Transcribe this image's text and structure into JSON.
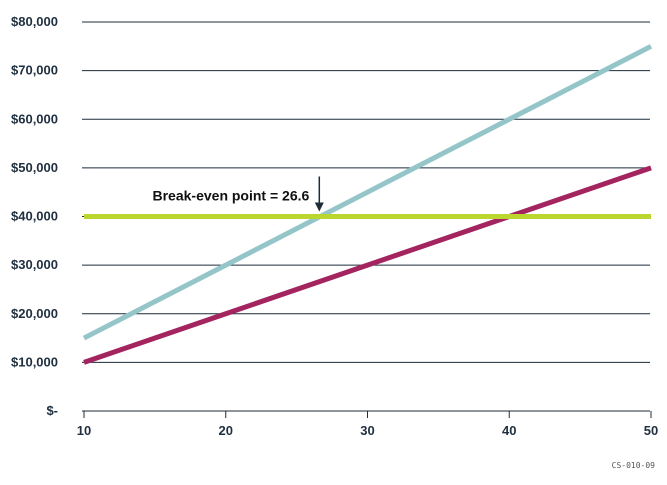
{
  "chart_data": {
    "type": "line",
    "title": "",
    "xlabel": "",
    "ylabel": "",
    "x": [
      10,
      20,
      30,
      40,
      50
    ],
    "x_tick_labels": [
      "10",
      "20",
      "30",
      "40",
      "50"
    ],
    "xlim": [
      10,
      50
    ],
    "y_ticks": [
      0,
      10000,
      20000,
      30000,
      40000,
      50000,
      60000,
      70000,
      80000
    ],
    "y_tick_labels": [
      "$-",
      "$10,000",
      "$20,000",
      "$30,000",
      "$40,000",
      "$50,000",
      "$60,000",
      "$70,000",
      "$80,000"
    ],
    "ylim": [
      0,
      80000
    ],
    "grid": "horizontal",
    "legend": "none",
    "series": [
      {
        "color": "#94c5c8",
        "values": [
          15000,
          30000,
          45000,
          60000,
          75000
        ]
      },
      {
        "color": "#a3245e",
        "values": [
          10000,
          20000,
          30000,
          40000,
          50000
        ]
      },
      {
        "color": "#bcd630",
        "values": [
          40000,
          40000,
          40000,
          40000,
          40000
        ]
      }
    ],
    "annotations": [
      {
        "text": "Break-even point = 26.6",
        "x": 26.6,
        "y": 40000
      }
    ]
  },
  "figure_code": "CS-010-09"
}
